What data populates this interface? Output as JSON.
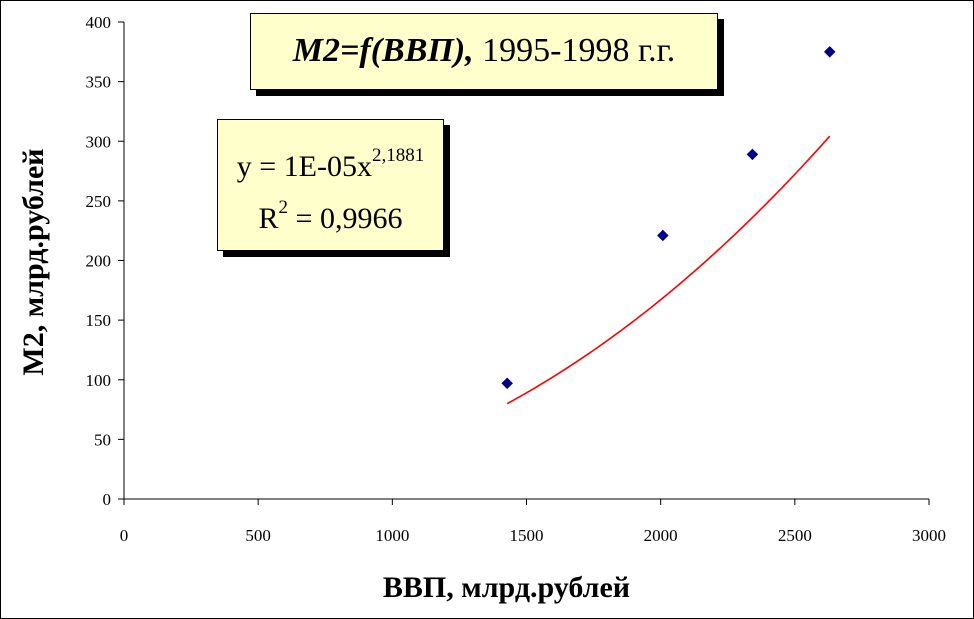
{
  "chart_data": {
    "type": "scatter",
    "title": {
      "main": "M2=f(ВВП),",
      "sub": "1995-1998 г.г."
    },
    "xlabel": "ВВП, млрд.рублей",
    "ylabel": "М2, млрд.рублей",
    "xlim": [
      0,
      3000
    ],
    "ylim": [
      0,
      400
    ],
    "x_ticks": [
      "0",
      "500",
      "1000",
      "1500",
      "2000",
      "2500",
      "3000"
    ],
    "y_ticks": [
      "0",
      "50",
      "100",
      "150",
      "200",
      "250",
      "300",
      "350",
      "400"
    ],
    "grid": false,
    "series": [
      {
        "points": [
          {
            "x": 1428,
            "y": 97
          },
          {
            "x": 2008,
            "y": 221
          },
          {
            "x": 2342,
            "y": 289
          },
          {
            "x": 2630,
            "y": 375
          }
        ],
        "marker": "diamond",
        "color": "#00008b"
      }
    ],
    "trendline": {
      "type": "power",
      "coefficient": 1e-05,
      "exponent": 2.1881,
      "x_range": [
        1428,
        2630
      ],
      "color": "#ff0000",
      "equation_prefix": "y = 1E-05x",
      "equation_exponent": "2,1881",
      "r2_prefix": "R",
      "r2_exponent": "2",
      "r2_value": " = 0,9966"
    }
  },
  "colors": {
    "box_fill": "#ffffcc",
    "marker": "#00008b",
    "trendline": "#ff0000"
  }
}
